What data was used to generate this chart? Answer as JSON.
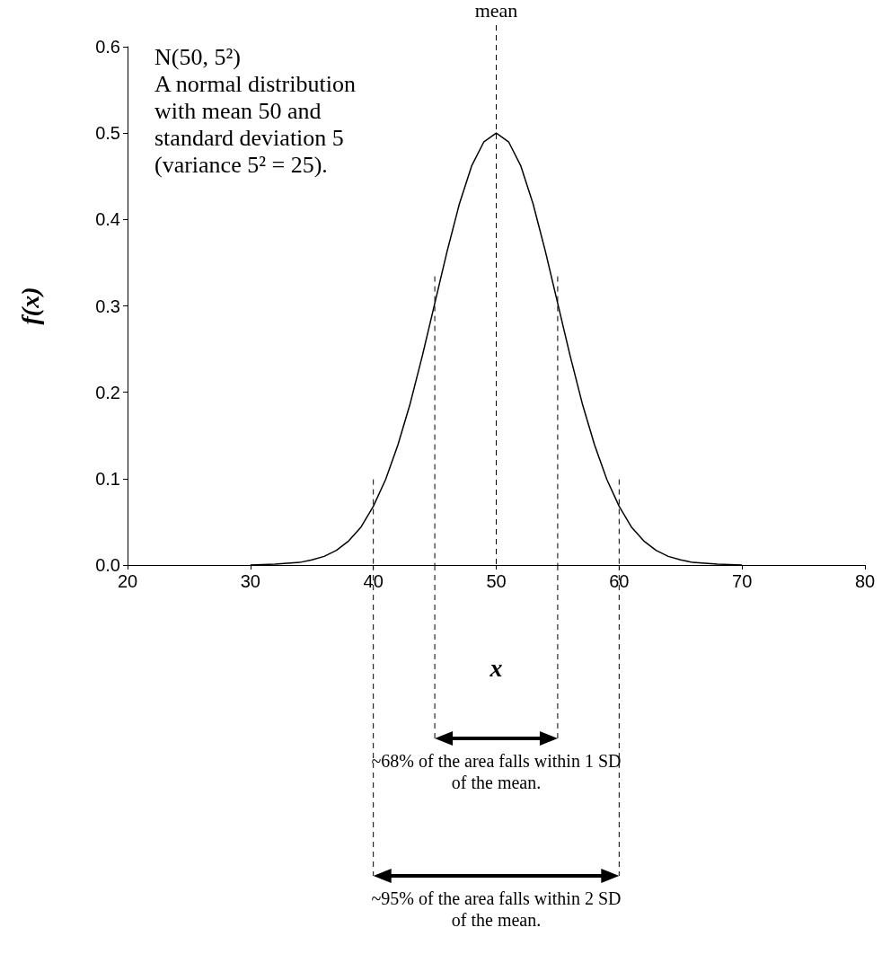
{
  "chart_data": {
    "type": "line",
    "xlabel": "x",
    "ylabel": "f(x)",
    "annotations": [
      "N(50, 5²)",
      "A normal distribution with mean 50 and standard deviation 5 (variance 5² = 25).",
      "~68% of the area falls within 1 SD of the mean.",
      "~95% of the area falls within 2 SD of the mean."
    ],
    "x": [
      30,
      32,
      34,
      35,
      36,
      37,
      38,
      39,
      40,
      41,
      42,
      43,
      44,
      45,
      46,
      47,
      48,
      49,
      50,
      51,
      52,
      53,
      54,
      55,
      56,
      57,
      58,
      59,
      60,
      61,
      62,
      63,
      64,
      65,
      66,
      68,
      70
    ],
    "series": [
      {
        "color": "#000000",
        "values": [
          0,
          0.001,
          0.003,
          0.006,
          0.01,
          0.017,
          0.028,
          0.044,
          0.068,
          0.099,
          0.139,
          0.187,
          0.243,
          0.303,
          0.363,
          0.418,
          0.462,
          0.49,
          0.5,
          0.49,
          0.462,
          0.418,
          0.363,
          0.303,
          0.243,
          0.187,
          0.139,
          0.099,
          0.068,
          0.044,
          0.028,
          0.017,
          0.01,
          0.006,
          0.003,
          0.001,
          0
        ]
      }
    ],
    "xlim": [
      20,
      80
    ],
    "xticks": [
      20,
      30,
      40,
      50,
      60,
      70,
      80
    ],
    "ylim": [
      0,
      0.6
    ],
    "yticks": [
      {
        "value": 0,
        "label": "0.0"
      },
      0.1,
      0.2,
      0.3,
      0.4,
      0.5,
      0.6
    ],
    "ref_lines": [
      {
        "axis": "x",
        "value": 50,
        "label": "mean",
        "line_style": "dashed"
      },
      {
        "axis": "x",
        "value": 45,
        "line_style": "dashed"
      },
      {
        "axis": "x",
        "value": 55,
        "line_style": "dashed"
      },
      {
        "axis": "x",
        "value": 40,
        "line_style": "dashed"
      },
      {
        "axis": "x",
        "value": 60,
        "line_style": "dashed"
      }
    ],
    "marker": "none",
    "line_style": "solid"
  }
}
